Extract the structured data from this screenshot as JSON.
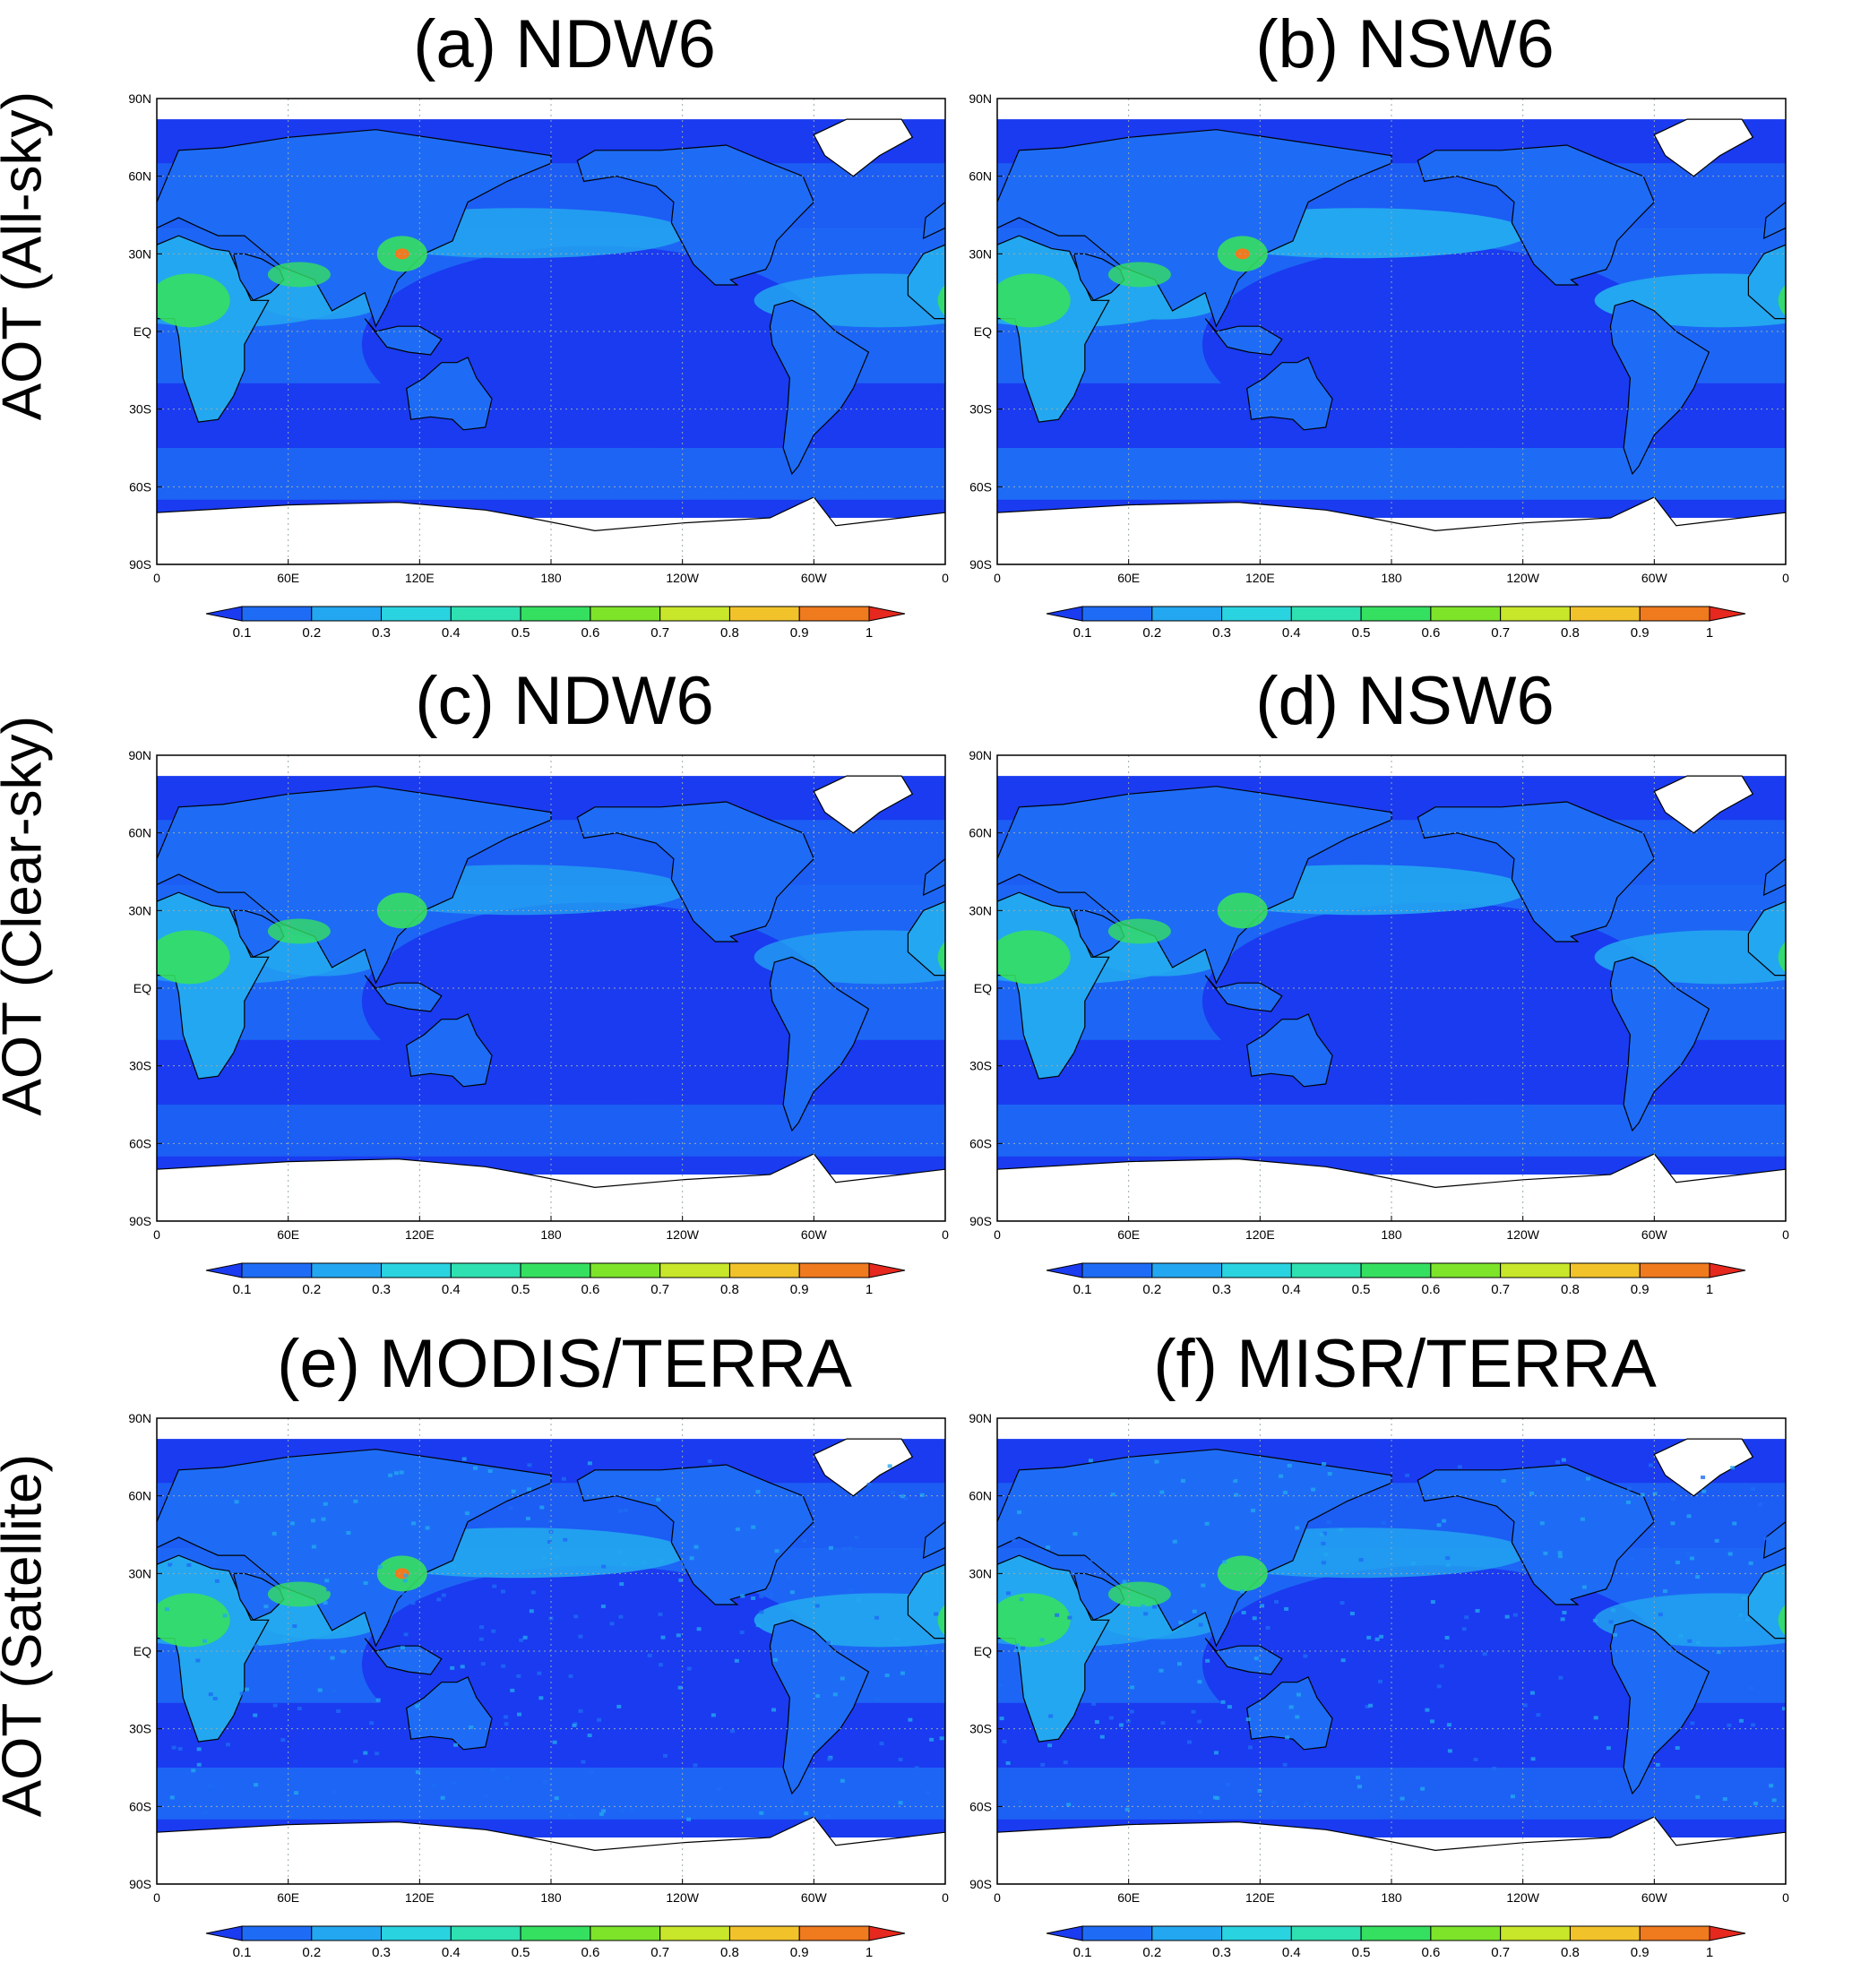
{
  "row_labels": [
    "AOT (All-sky)",
    "AOT (Clear-sky)",
    "AOT (Satellite)"
  ],
  "panels": [
    {
      "title": "(a) NDW6"
    },
    {
      "title": "(b) NSW6"
    },
    {
      "title": "(c) NDW6"
    },
    {
      "title": "(d) NSW6"
    },
    {
      "title": "(e) MODIS/TERRA"
    },
    {
      "title": "(f) MISR/TERRA"
    }
  ],
  "axes": {
    "lat_ticks": [
      "90N",
      "60N",
      "30N",
      "EQ",
      "30S",
      "60S",
      "90S"
    ],
    "lon_ticks": [
      "0",
      "60E",
      "120E",
      "180",
      "120W",
      "60W",
      "0"
    ]
  },
  "colorbar": {
    "labels": [
      "0.1",
      "0.2",
      "0.3",
      "0.4",
      "0.5",
      "0.6",
      "0.7",
      "0.8",
      "0.9",
      "1"
    ],
    "colors": [
      "#1a3bf0",
      "#1e6cf5",
      "#23a7f0",
      "#2ad3e0",
      "#2fe0b0",
      "#35e060",
      "#7de42a",
      "#c8e62a",
      "#f2c22a",
      "#f07a1e",
      "#e6281e"
    ]
  },
  "colors": {
    "ocean_low": "#1a3bf0",
    "ocean_mid": "#1e6cf5",
    "plume": "#23a7f0",
    "land_high": "#35e060",
    "hotspot": "#f07a1e",
    "no_data": "#ffffff",
    "coastline": "#000000"
  }
}
